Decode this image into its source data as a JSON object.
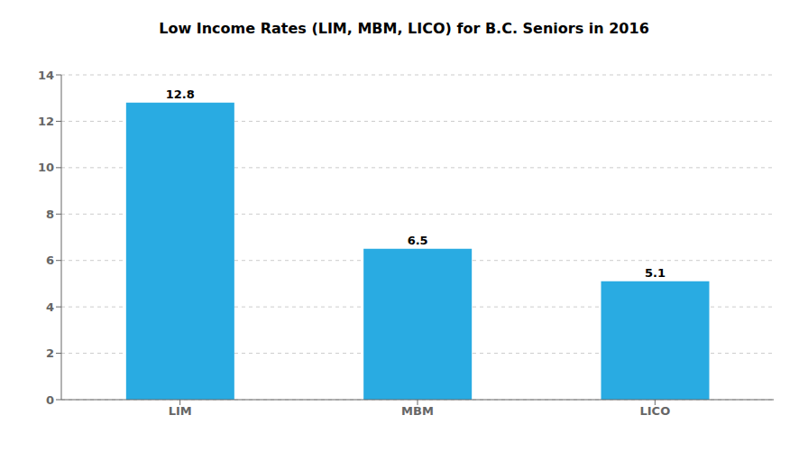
{
  "chart_data": {
    "type": "bar",
    "title": "Low Income Rates (LIM, MBM, LICO) for B.C. Seniors in 2016",
    "categories": [
      "LIM",
      "MBM",
      "LICO"
    ],
    "values": [
      12.8,
      6.5,
      5.1
    ],
    "color": "#29ABE2",
    "ylim": [
      0,
      14
    ],
    "yticks": [
      0,
      2,
      4,
      6,
      8,
      10,
      12,
      14
    ],
    "grid": true,
    "data_labels": true
  }
}
